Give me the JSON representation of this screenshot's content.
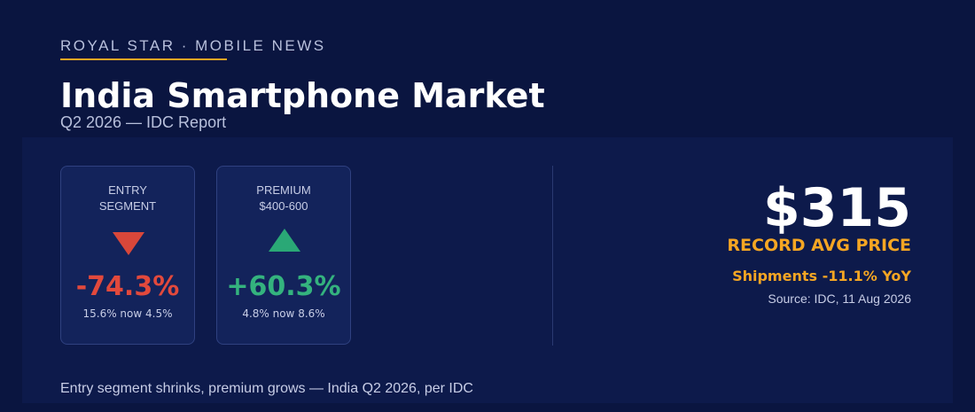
{
  "header": {
    "kicker": "ROYAL STAR · MOBILE NEWS",
    "title": "India Smartphone Market",
    "subtitle": "Q2 2026 — IDC Report"
  },
  "cards": [
    {
      "label": [
        "ENTRY",
        "SEGMENT"
      ],
      "value": "-74.3%",
      "note": "15.6% now 4.5%"
    },
    {
      "label": [
        "PREMIUM",
        "$400-600"
      ],
      "value": "+60.3%",
      "note": "4.8% now 8.6%"
    }
  ],
  "highlight": {
    "price": "$315",
    "price_label": "RECORD AVG PRICE",
    "shipments": "Shipments -11.1% YoY",
    "source": "Source: IDC, 11 Aug 2026"
  },
  "footer": "Entry segment shrinks, premium grows — India Q2 2026, per IDC"
}
